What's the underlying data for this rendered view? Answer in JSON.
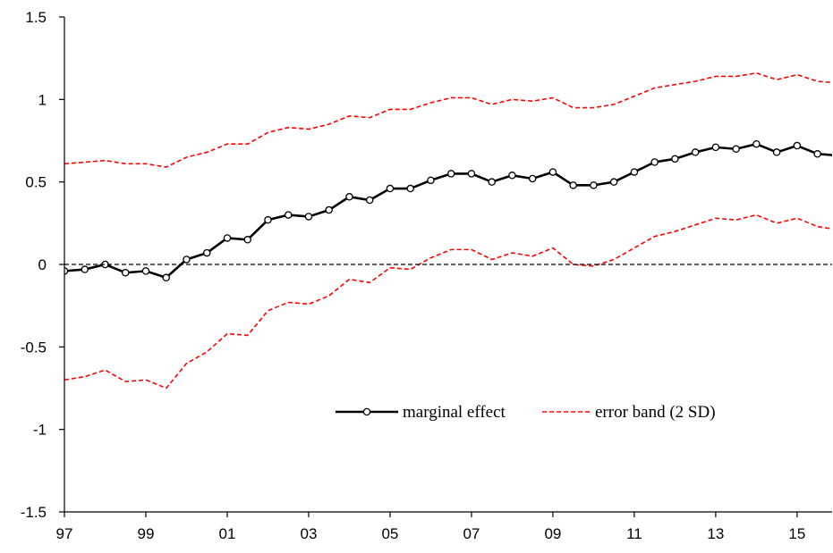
{
  "chart_data": {
    "type": "line",
    "x": [
      1997,
      1997.5,
      1998,
      1998.5,
      1999,
      1999.5,
      2000,
      2000.5,
      2001,
      2001.5,
      2002,
      2002.5,
      2003,
      2003.5,
      2004,
      2004.5,
      2005,
      2005.5,
      2006,
      2006.5,
      2007,
      2007.5,
      2008,
      2008.5,
      2009,
      2009.5,
      2010,
      2010.5,
      2011,
      2011.5,
      2012,
      2012.5,
      2013,
      2013.5,
      2014,
      2014.5,
      2015,
      2015.5,
      2016
    ],
    "series": [
      {
        "name": "marginal effect",
        "color": "#000000",
        "dash": "solid",
        "markers": true,
        "values": [
          -0.04,
          -0.03,
          0.0,
          -0.05,
          -0.04,
          -0.08,
          0.03,
          0.07,
          0.16,
          0.15,
          0.27,
          0.3,
          0.29,
          0.33,
          0.41,
          0.39,
          0.46,
          0.46,
          0.51,
          0.55,
          0.55,
          0.5,
          0.54,
          0.52,
          0.56,
          0.48,
          0.48,
          0.5,
          0.56,
          0.62,
          0.64,
          0.68,
          0.71,
          0.7,
          0.73,
          0.68,
          0.72,
          0.67,
          0.66
        ]
      },
      {
        "name": "error band (2 SD)",
        "color": "#ff0000",
        "dash": "dashed",
        "markers": false,
        "values": [
          0.61,
          0.62,
          0.63,
          0.61,
          0.61,
          0.59,
          0.65,
          0.68,
          0.73,
          0.73,
          0.8,
          0.83,
          0.82,
          0.85,
          0.9,
          0.89,
          0.94,
          0.94,
          0.98,
          1.01,
          1.01,
          0.97,
          1.0,
          0.99,
          1.01,
          0.95,
          0.95,
          0.97,
          1.02,
          1.07,
          1.09,
          1.11,
          1.14,
          1.14,
          1.16,
          1.12,
          1.15,
          1.11,
          1.1
        ],
        "lower": [
          -0.7,
          -0.68,
          -0.64,
          -0.71,
          -0.7,
          -0.75,
          -0.6,
          -0.53,
          -0.42,
          -0.43,
          -0.28,
          -0.23,
          -0.24,
          -0.19,
          -0.09,
          -0.11,
          -0.02,
          -0.03,
          0.04,
          0.09,
          0.09,
          0.03,
          0.07,
          0.05,
          0.1,
          0.0,
          -0.01,
          0.03,
          0.1,
          0.17,
          0.2,
          0.24,
          0.28,
          0.27,
          0.3,
          0.25,
          0.28,
          0.23,
          0.21
        ]
      }
    ],
    "reference_line": 0,
    "xlim": [
      1997,
      2015.86
    ],
    "xticks": [
      {
        "value": 1997,
        "label": "97"
      },
      {
        "value": 1999,
        "label": "99"
      },
      {
        "value": 2001,
        "label": "01"
      },
      {
        "value": 2003,
        "label": "03"
      },
      {
        "value": 2005,
        "label": "05"
      },
      {
        "value": 2007,
        "label": "07"
      },
      {
        "value": 2009,
        "label": "09"
      },
      {
        "value": 2011,
        "label": "11"
      },
      {
        "value": 2013,
        "label": "13"
      },
      {
        "value": 2015,
        "label": "15"
      }
    ],
    "ylim": [
      -1.5,
      1.5
    ],
    "yticks": [
      -1.5,
      -1,
      -0.5,
      0,
      0.5,
      1,
      1.5
    ]
  }
}
